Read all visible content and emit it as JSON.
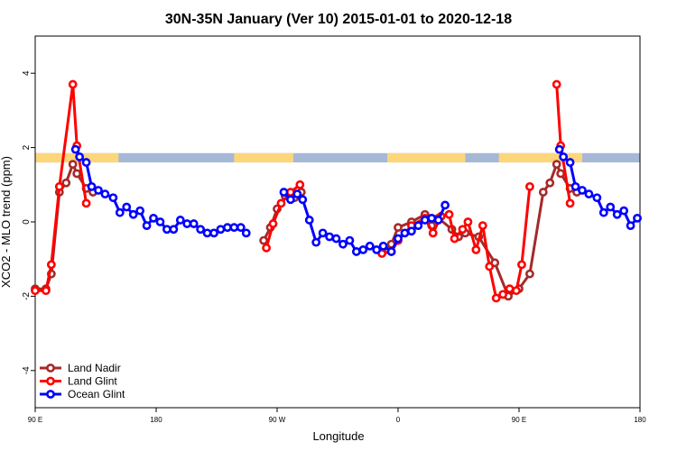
{
  "chart_data": {
    "type": "line",
    "title": "30N-35N January (Ver 10)   2015-01-01 to 2020-12-18",
    "xlabel": "Longitude",
    "ylabel": "XCO2 - MLO trend (ppm)",
    "xlim": [
      0,
      450
    ],
    "ylim": [
      -5,
      5
    ],
    "y_ticks": [
      -4,
      -2,
      0,
      2,
      4
    ],
    "x_ticks": [
      {
        "x": 0,
        "label": "90 E"
      },
      {
        "x": 90,
        "label": "180"
      },
      {
        "x": 180,
        "label": "90 W"
      },
      {
        "x": 270,
        "label": "0"
      },
      {
        "x": 360,
        "label": "90 E"
      },
      {
        "x": 450,
        "label": "180"
      }
    ],
    "legend_position": "bottom-left",
    "land_band": {
      "y_range": [
        1.6,
        1.85
      ],
      "ocean_color": "#a7b8d6",
      "land_color": "#fdd67a",
      "land_segments": [
        [
          0,
          62
        ],
        [
          148,
          192
        ],
        [
          262,
          320
        ],
        [
          345,
          407
        ]
      ]
    },
    "series": [
      {
        "name": "Land Nadir",
        "color": "#a52a2a",
        "points": [
          [
            0,
            -1.8
          ],
          [
            8,
            -1.8
          ],
          [
            12,
            -1.4
          ],
          [
            18,
            0.8
          ],
          [
            23,
            1.05
          ],
          [
            28,
            1.55
          ],
          [
            31,
            1.3
          ],
          [
            38,
            0.9
          ],
          [
            43,
            0.8
          ],
          [
            170,
            -0.5
          ],
          [
            175,
            -0.15
          ],
          [
            180,
            0.35
          ],
          [
            186,
            0.7
          ],
          [
            193,
            0.65
          ],
          [
            198,
            0.8
          ],
          [
            258,
            -0.8
          ],
          [
            265,
            -0.6
          ],
          [
            270,
            -0.15
          ],
          [
            280,
            0.0
          ],
          [
            290,
            0.2
          ],
          [
            295,
            -0.1
          ],
          [
            300,
            0.1
          ],
          [
            310,
            -0.2
          ],
          [
            315,
            -0.4
          ],
          [
            320,
            -0.3
          ],
          [
            330,
            -0.4
          ],
          [
            342,
            -1.1
          ],
          [
            352,
            -2.0
          ],
          [
            360,
            -1.8
          ],
          [
            368,
            -1.4
          ],
          [
            378,
            0.8
          ],
          [
            383,
            1.05
          ],
          [
            388,
            1.55
          ],
          [
            391,
            1.3
          ],
          [
            398,
            0.9
          ],
          [
            403,
            0.8
          ]
        ]
      },
      {
        "name": "Land Glint",
        "color": "#ff0000",
        "points": [
          [
            0,
            -1.85
          ],
          [
            8,
            -1.85
          ],
          [
            12,
            -1.15
          ],
          [
            18,
            0.95
          ],
          [
            28,
            3.7
          ],
          [
            31,
            2.05
          ],
          [
            38,
            0.5
          ],
          [
            172,
            -0.7
          ],
          [
            177,
            -0.05
          ],
          [
            183,
            0.5
          ],
          [
            190,
            0.8
          ],
          [
            197,
            1.0
          ],
          [
            258,
            -0.85
          ],
          [
            265,
            -0.8
          ],
          [
            270,
            -0.5
          ],
          [
            280,
            -0.1
          ],
          [
            290,
            0.1
          ],
          [
            296,
            -0.3
          ],
          [
            302,
            0.15
          ],
          [
            308,
            0.2
          ],
          [
            312,
            -0.45
          ],
          [
            318,
            -0.2
          ],
          [
            322,
            0.0
          ],
          [
            328,
            -0.75
          ],
          [
            333,
            -0.1
          ],
          [
            338,
            -1.2
          ],
          [
            343,
            -2.05
          ],
          [
            348,
            -1.95
          ],
          [
            353,
            -1.8
          ],
          [
            358,
            -1.85
          ],
          [
            362,
            -1.15
          ],
          [
            368,
            0.95
          ],
          [
            388,
            3.7
          ],
          [
            391,
            2.05
          ],
          [
            398,
            0.5
          ]
        ]
      },
      {
        "name": "Ocean Glint",
        "color": "#0000ff",
        "points": [
          [
            30,
            1.95
          ],
          [
            33,
            1.75
          ],
          [
            38,
            1.6
          ],
          [
            42,
            0.95
          ],
          [
            47,
            0.85
          ],
          [
            52,
            0.75
          ],
          [
            58,
            0.65
          ],
          [
            63,
            0.25
          ],
          [
            68,
            0.4
          ],
          [
            73,
            0.2
          ],
          [
            78,
            0.3
          ],
          [
            83,
            -0.1
          ],
          [
            88,
            0.1
          ],
          [
            93,
            0.0
          ],
          [
            98,
            -0.2
          ],
          [
            103,
            -0.2
          ],
          [
            108,
            0.05
          ],
          [
            113,
            -0.05
          ],
          [
            118,
            -0.05
          ],
          [
            123,
            -0.2
          ],
          [
            128,
            -0.3
          ],
          [
            133,
            -0.3
          ],
          [
            138,
            -0.2
          ],
          [
            143,
            -0.15
          ],
          [
            148,
            -0.15
          ],
          [
            153,
            -0.15
          ],
          [
            157,
            -0.3
          ],
          [
            185,
            0.8
          ],
          [
            190,
            0.6
          ],
          [
            195,
            0.75
          ],
          [
            199,
            0.6
          ],
          [
            204,
            0.05
          ],
          [
            209,
            -0.55
          ],
          [
            214,
            -0.3
          ],
          [
            219,
            -0.4
          ],
          [
            224,
            -0.45
          ],
          [
            229,
            -0.6
          ],
          [
            234,
            -0.5
          ],
          [
            239,
            -0.8
          ],
          [
            244,
            -0.75
          ],
          [
            249,
            -0.65
          ],
          [
            254,
            -0.75
          ],
          [
            259,
            -0.65
          ],
          [
            265,
            -0.8
          ],
          [
            270,
            -0.45
          ],
          [
            275,
            -0.3
          ],
          [
            280,
            -0.25
          ],
          [
            285,
            -0.1
          ],
          [
            290,
            0.05
          ],
          [
            295,
            0.1
          ],
          [
            300,
            0.05
          ],
          [
            305,
            0.45
          ],
          [
            390,
            1.95
          ],
          [
            393,
            1.75
          ],
          [
            398,
            1.6
          ],
          [
            402,
            0.95
          ],
          [
            407,
            0.85
          ],
          [
            412,
            0.75
          ],
          [
            418,
            0.65
          ],
          [
            423,
            0.25
          ],
          [
            428,
            0.4
          ],
          [
            433,
            0.2
          ],
          [
            438,
            0.3
          ],
          [
            443,
            -0.1
          ],
          [
            448,
            0.1
          ]
        ]
      }
    ]
  }
}
